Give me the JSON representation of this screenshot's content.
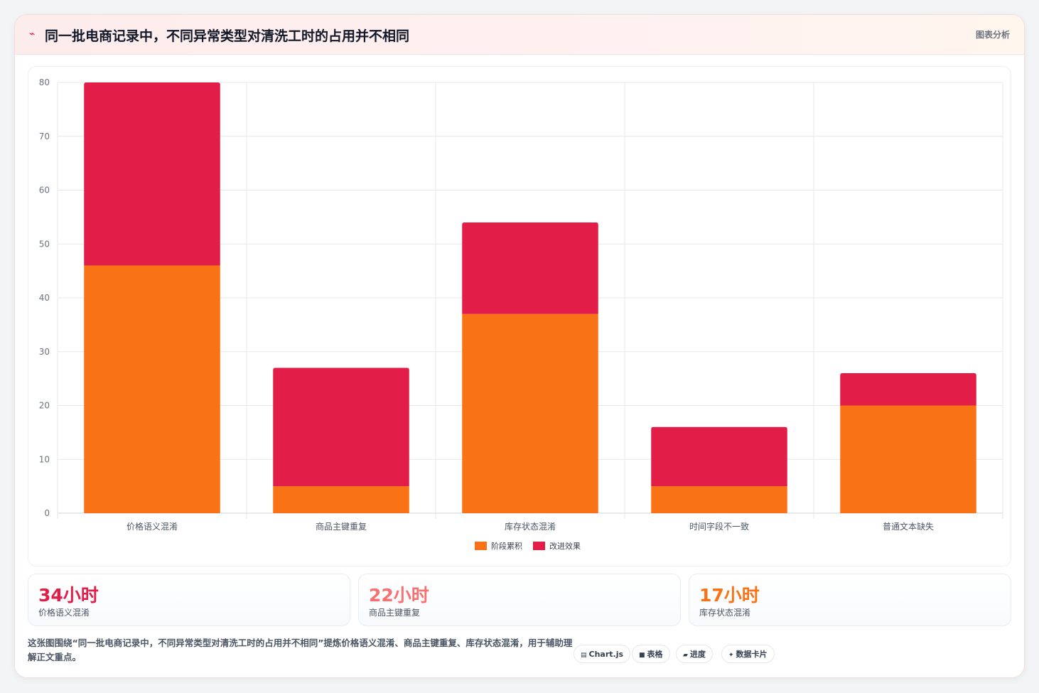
{
  "header": {
    "icon": "zigzag-icon",
    "title": "同一批电商记录中，不同异常类型对清洗工时的占用并不相同",
    "tag": "图表分析"
  },
  "chart_data": {
    "type": "bar",
    "stacked": true,
    "categories": [
      "价格语义混淆",
      "商品主键重复",
      "库存状态混淆",
      "时间字段不一致",
      "普通文本缺失"
    ],
    "series": [
      {
        "name": "阶段累积",
        "values": [
          46,
          5,
          37,
          5,
          20
        ],
        "color": "#f97316"
      },
      {
        "name": "改进效果",
        "values": [
          34,
          22,
          17,
          11,
          6
        ],
        "color": "#e11d48"
      }
    ],
    "ylim": [
      0,
      80
    ],
    "yticks": [
      "0",
      "10",
      "20",
      "30",
      "40",
      "50",
      "60",
      "70",
      "80"
    ],
    "legend_position": "bottom-center",
    "grid": true
  },
  "stats": [
    {
      "value": "34小时",
      "label": "价格语义混淆",
      "color": "#e11d48"
    },
    {
      "value": "22小时",
      "label": "商品主键重复",
      "color": "#f87171"
    },
    {
      "value": "17小时",
      "label": "库存状态混淆",
      "color": "#f97316"
    }
  ],
  "footer": {
    "text": "这张图围绕“同一批电商记录中，不同异常类型对清洗工时的占用并不相同”提炼价格语义混淆、商品主键重复、库存状态混淆，用于辅助理解正文重点。"
  },
  "chips": [
    {
      "icon": "chart-icon",
      "glyph": "▤",
      "label": "Chart.js"
    },
    {
      "icon": "table-icon",
      "glyph": "■",
      "label": "表格"
    },
    {
      "icon": "progress-icon",
      "glyph": "▰",
      "label": "进度"
    },
    {
      "icon": "sparkle-icon",
      "glyph": "✦",
      "label": "数据卡片"
    }
  ]
}
